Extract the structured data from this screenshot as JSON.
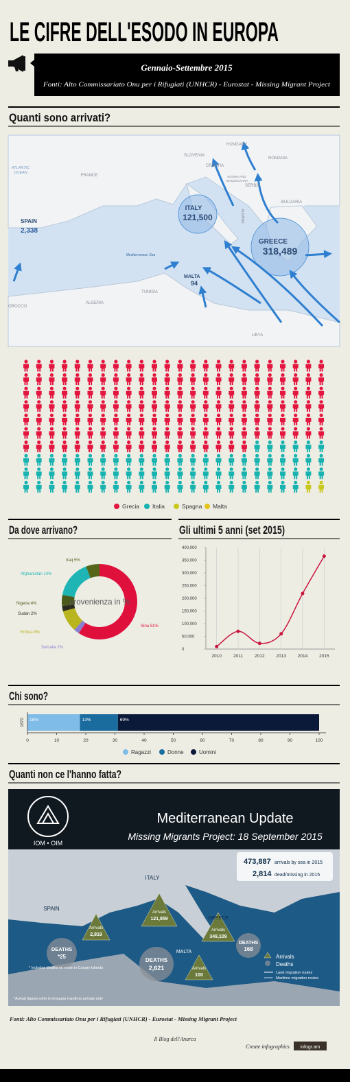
{
  "header": {
    "title": "LE CIFRE DELL'ESODO IN EUROPA",
    "period": "Gennaio-Settembre 2015",
    "sources": "Fonti: Alto Commissariato Onu per i Rifugiati (UNHCR) - Eurostat - Missing Migrant Project"
  },
  "sections": [
    "Quanti sono arrivati?",
    "Da dove arrivano?",
    "Gli ultimi 5 anni (set 2015)",
    "Chi sono?",
    "Quanti non ce l'hanno fatta?"
  ],
  "map": {
    "labels": [
      "ATLANTIC",
      "OCEAN",
      "FRANCE",
      "SLOVENIA",
      "HUNGARY",
      "CROATIA",
      "ROMANIA",
      "BOSNIA AND",
      "HERZEGOVINA",
      "SERBIA",
      "BULGARIA",
      "ALBANIA",
      "ITALY",
      "121,500",
      "SPAIN",
      "2,338",
      "GREECE",
      "318,489",
      "MALTA",
      "94",
      "Mediterranean Sea",
      "TUNISIA",
      "ALGERIA",
      "LIBYA",
      "OROCCO"
    ]
  },
  "chart_data": [
    {
      "type": "pictogram",
      "categories": [
        "Grecia",
        "Italia",
        "Spagna",
        "Malta"
      ],
      "values": [
        162,
        76,
        2,
        0
      ],
      "colors": [
        "#e3163f",
        "#18b3b0",
        "#c9c81f",
        "#e4c21a"
      ]
    },
    {
      "type": "donut",
      "center_label": "provenienza in %",
      "categories": [
        "Siria",
        "Somalia",
        "Eritrea",
        "Sudan",
        "Nigeria",
        "Afghanistan",
        "Iraq"
      ],
      "values": [
        51,
        2,
        8,
        2,
        4,
        14,
        5
      ],
      "value_labels": [
        "51%",
        "2%",
        "8%",
        "2%",
        "4%",
        "14%",
        "5%"
      ],
      "colors": [
        "#e0103d",
        "#8a7fd1",
        "#b8b51f",
        "#2a2a1e",
        "#4a5a1a",
        "#1fb5b5",
        "#55651a"
      ]
    },
    {
      "type": "line",
      "categories": [
        "2010",
        "2011",
        "2012",
        "2013",
        "2014",
        "2015"
      ],
      "values": [
        9700,
        70000,
        22500,
        60000,
        219000,
        366000
      ],
      "color": "#c8173f",
      "ylim": [
        0,
        400000
      ],
      "yticks": [
        0,
        {
          "value": 50000,
          "label": "50,000"
        },
        {
          "value": 100000,
          "label": "100,000"
        },
        {
          "value": 150000,
          "label": "150,000"
        },
        {
          "value": 200000,
          "label": "200,000"
        },
        {
          "value": 250000,
          "label": "250,000"
        },
        {
          "value": 300000,
          "label": "300,000"
        },
        {
          "value": 350000,
          "label": "350,000"
        },
        {
          "value": 400000,
          "label": "400,000"
        }
      ],
      "grid": true
    },
    {
      "type": "stacked_bar",
      "categories": [
        "1870"
      ],
      "series": [
        {
          "name": "Ragazzi",
          "color": "#7fbce8",
          "values": [
            18
          ],
          "value_labels": [
            "18%"
          ]
        },
        {
          "name": "Donne",
          "color": "#1a6c9f",
          "values": [
            13
          ],
          "value_labels": [
            "13%"
          ]
        },
        {
          "name": "Uomini",
          "color": "#0c1a3a",
          "values": [
            69
          ],
          "value_labels": [
            "69%"
          ]
        }
      ],
      "xlim": [
        0,
        100
      ],
      "xticks": [
        0,
        10,
        20,
        30,
        40,
        50,
        60,
        70,
        80,
        90,
        100
      ]
    }
  ],
  "iom": {
    "labels": [
      "IOM • OIM",
      "Mediterranean Update",
      "Missing Migrants Project: 18 September 2015",
      "473,887",
      "arrivals by sea in 2015",
      "2,814",
      "dead/missing in 2015",
      "ITALY",
      "SPAIN",
      "GREECE",
      "MALTA",
      "Arrivals",
      "2,819",
      "Arrivals",
      "121,859",
      "Arrivals",
      "349,109",
      "Arrivals",
      "100",
      "DEATHS",
      "*25",
      "DEATHS",
      "2,621",
      "DEATHS",
      "168",
      "* Includes deaths en route to Canary Islands",
      "Arrivals",
      "Deaths",
      "Land migration routes",
      "Maritime migration routes",
      "*Arrival figures refer to irregular maritime arrivals only"
    ]
  },
  "footer": {
    "sources": "Fonti: Alto Commissariato Onu per i Rifugiati (UNHCR) - Eurostat - Missing Migrant Project",
    "blog": "Il Blog dell'Anarca",
    "create": "Create infographics",
    "brand": "infogr.am"
  }
}
